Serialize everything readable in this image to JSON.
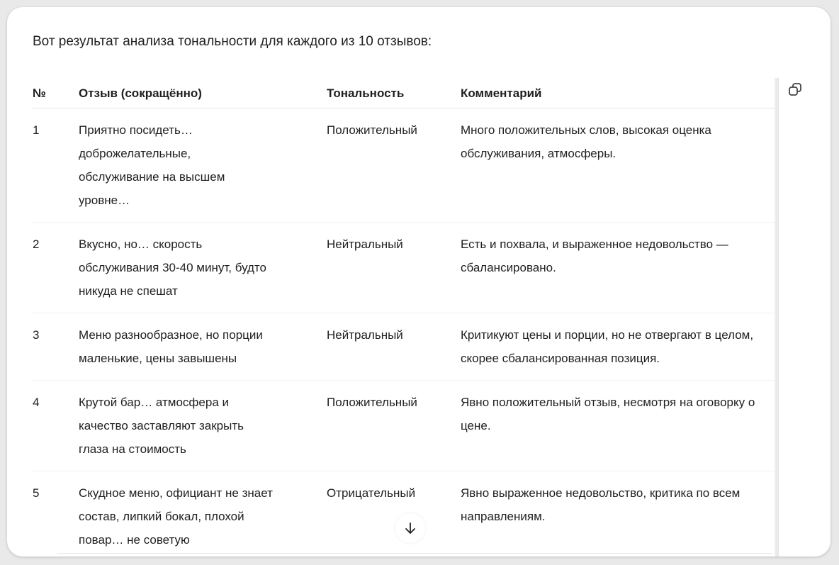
{
  "intro": "Вот результат анализа тональности для каждого из 10 отзывов:",
  "icons": {
    "copy": "copy-icon",
    "scroll_down": "arrow-down-icon"
  },
  "table": {
    "headers": [
      "№",
      "Отзыв (сокращённо)",
      "Тональность",
      "Комментарий"
    ],
    "rows": [
      {
        "n": "1",
        "review": "Приятно посидеть…\nдоброжелательные,\nобслуживание на высшем\nуровне…",
        "tone": "Положительный",
        "comment": "Много положительных слов, высокая оценка\nобслуживания, атмосферы."
      },
      {
        "n": "2",
        "review": "Вкусно, но… скорость\nобслуживания 30-40 минут, будто\nникуда не спешат",
        "tone": "Нейтральный",
        "comment": "Есть и похвала, и выраженное недовольство —\nсбалансировано."
      },
      {
        "n": "3",
        "review": "Меню разнообразное, но порции\nмаленькие, цены завышены",
        "tone": "Нейтральный",
        "comment": "Критикуют цены и порции, но не отвергают в целом,\nскорее сбалансированная позиция."
      },
      {
        "n": "4",
        "review": "Крутой бар… атмосфера и\nкачество заставляют закрыть\nглаза на стоимость",
        "tone": "Положительный",
        "comment": "Явно положительный отзыв, несмотря на оговорку о\nцене."
      },
      {
        "n": "5",
        "review": "Скудное меню, официант не знает\nсостав, липкий бокал, плохой\nповар… не советую",
        "tone": "Отрицательный",
        "comment": "Явно выраженное недовольство, критика по всем\nнаправлениям."
      }
    ]
  }
}
